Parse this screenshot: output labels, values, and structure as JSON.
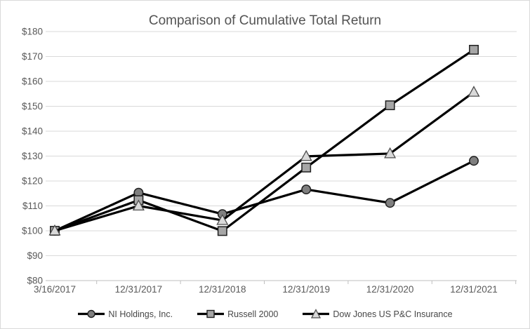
{
  "chart": {
    "title": "Comparison of Cumulative Total Return"
  },
  "chart_data": {
    "type": "line",
    "title": "Comparison of Cumulative Total Return",
    "categories": [
      "3/16/2017",
      "12/31/2017",
      "12/31/2018",
      "12/31/2019",
      "12/31/2020",
      "12/31/2021"
    ],
    "series": [
      {
        "name": "NI Holdings, Inc.",
        "marker": "circle",
        "marker_fill": "#7f7f7f",
        "marker_stroke": "#1f1f1f",
        "values": [
          100,
          115.3,
          106.7,
          116.6,
          111.2,
          128.1
        ]
      },
      {
        "name": "Russell 2000",
        "marker": "square",
        "marker_fill": "#a6a6a6",
        "marker_stroke": "#1f1f1f",
        "values": [
          100,
          112.3,
          99.9,
          125.4,
          150.4,
          172.7
        ]
      },
      {
        "name": "Dow Jones US P&C Insurance",
        "marker": "triangle",
        "marker_fill": "#d9d9d9",
        "marker_stroke": "#4d4d4d",
        "values": [
          100,
          110.0,
          104.2,
          129.9,
          131.0,
          155.7
        ]
      }
    ],
    "ylim": [
      80,
      180
    ],
    "ytick_step": 10,
    "ytick_prefix": "$",
    "line_color": "#000000",
    "grid": true,
    "legend_position": "bottom",
    "colors": {
      "grid": "#d9d9d9",
      "axis": "#bfbfbf",
      "tick_text": "#595959",
      "title_text": "#535353",
      "legend_text": "#474747",
      "border": "#d9d9d9"
    }
  }
}
